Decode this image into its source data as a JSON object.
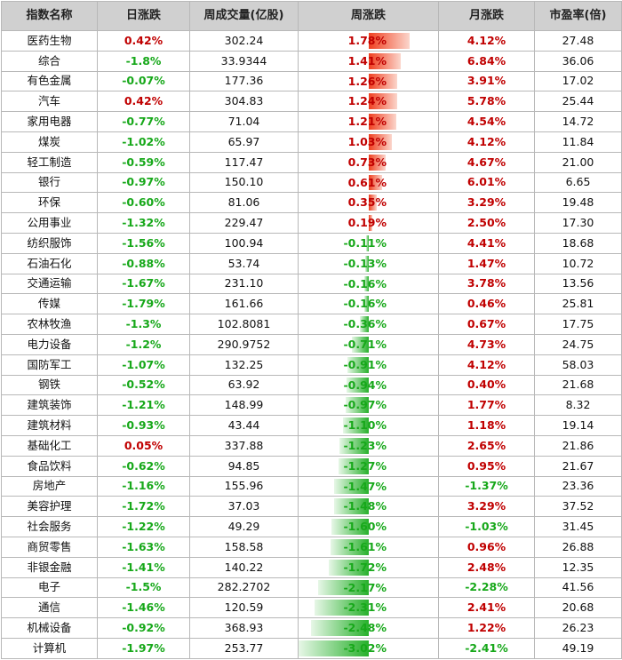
{
  "headers": [
    "指数名称",
    "日涨跌",
    "周成交量(亿股)",
    "周涨跌",
    "月涨跌",
    "市盈率(倍)"
  ],
  "rows": [
    {
      "name": "医药生物",
      "day": "0.42%",
      "vol": "302.24",
      "week": "1.78%",
      "week_value": 1.78,
      "month": "4.12%",
      "pe": "27.48"
    },
    {
      "name": "综合",
      "day": "-1.8%",
      "vol": "33.9344",
      "week": "1.41%",
      "week_value": 1.41,
      "month": "6.84%",
      "pe": "36.06"
    },
    {
      "name": "有色金属",
      "day": "-0.07%",
      "vol": "177.36",
      "week": "1.26%",
      "week_value": 1.26,
      "month": "3.91%",
      "pe": "17.02"
    },
    {
      "name": "汽车",
      "day": "0.42%",
      "vol": "304.83",
      "week": "1.24%",
      "week_value": 1.24,
      "month": "5.78%",
      "pe": "25.44"
    },
    {
      "name": "家用电器",
      "day": "-0.77%",
      "vol": "71.04",
      "week": "1.21%",
      "week_value": 1.21,
      "month": "4.54%",
      "pe": "14.72"
    },
    {
      "name": "煤炭",
      "day": "-1.02%",
      "vol": "65.97",
      "week": "1.03%",
      "week_value": 1.03,
      "month": "4.12%",
      "pe": "11.84"
    },
    {
      "name": "轻工制造",
      "day": "-0.59%",
      "vol": "117.47",
      "week": "0.73%",
      "week_value": 0.73,
      "month": "4.67%",
      "pe": "21.00"
    },
    {
      "name": "银行",
      "day": "-0.97%",
      "vol": "150.10",
      "week": "0.61%",
      "week_value": 0.61,
      "month": "6.01%",
      "pe": "6.65"
    },
    {
      "name": "环保",
      "day": "-0.60%",
      "vol": "81.06",
      "week": "0.35%",
      "week_value": 0.35,
      "month": "3.29%",
      "pe": "19.48"
    },
    {
      "name": "公用事业",
      "day": "-1.32%",
      "vol": "229.47",
      "week": "0.19%",
      "week_value": 0.19,
      "month": "2.50%",
      "pe": "17.30"
    },
    {
      "name": "纺织服饰",
      "day": "-1.56%",
      "vol": "100.94",
      "week": "-0.11%",
      "week_value": -0.11,
      "month": "4.41%",
      "pe": "18.68"
    },
    {
      "name": "石油石化",
      "day": "-0.88%",
      "vol": "53.74",
      "week": "-0.13%",
      "week_value": -0.13,
      "month": "1.47%",
      "pe": "10.72"
    },
    {
      "name": "交通运输",
      "day": "-1.67%",
      "vol": "231.10",
      "week": "-0.16%",
      "week_value": -0.16,
      "month": "3.78%",
      "pe": "13.56"
    },
    {
      "name": "传媒",
      "day": "-1.79%",
      "vol": "161.66",
      "week": "-0.16%",
      "week_value": -0.16,
      "month": "0.46%",
      "pe": "25.81"
    },
    {
      "name": "农林牧渔",
      "day": "-1.3%",
      "vol": "102.8081",
      "week": "-0.36%",
      "week_value": -0.36,
      "month": "0.67%",
      "pe": "17.75"
    },
    {
      "name": "电力设备",
      "day": "-1.2%",
      "vol": "290.9752",
      "week": "-0.71%",
      "week_value": -0.71,
      "month": "4.73%",
      "pe": "24.75"
    },
    {
      "name": "国防军工",
      "day": "-1.07%",
      "vol": "132.25",
      "week": "-0.91%",
      "week_value": -0.91,
      "month": "4.12%",
      "pe": "58.03"
    },
    {
      "name": "钢铁",
      "day": "-0.52%",
      "vol": "63.92",
      "week": "-0.94%",
      "week_value": -0.94,
      "month": "0.40%",
      "pe": "21.68"
    },
    {
      "name": "建筑装饰",
      "day": "-1.21%",
      "vol": "148.99",
      "week": "-0.97%",
      "week_value": -0.97,
      "month": "1.77%",
      "pe": "8.32"
    },
    {
      "name": "建筑材料",
      "day": "-0.93%",
      "vol": "43.44",
      "week": "-1.10%",
      "week_value": -1.1,
      "month": "1.18%",
      "pe": "19.14"
    },
    {
      "name": "基础化工",
      "day": "0.05%",
      "vol": "337.88",
      "week": "-1.23%",
      "week_value": -1.23,
      "month": "2.65%",
      "pe": "21.86"
    },
    {
      "name": "食品饮料",
      "day": "-0.62%",
      "vol": "94.85",
      "week": "-1.27%",
      "week_value": -1.27,
      "month": "0.95%",
      "pe": "21.67"
    },
    {
      "name": "房地产",
      "day": "-1.16%",
      "vol": "155.96",
      "week": "-1.47%",
      "week_value": -1.47,
      "month": "-1.37%",
      "pe": "23.36"
    },
    {
      "name": "美容护理",
      "day": "-1.72%",
      "vol": "37.03",
      "week": "-1.48%",
      "week_value": -1.48,
      "month": "3.29%",
      "pe": "37.52"
    },
    {
      "name": "社会服务",
      "day": "-1.22%",
      "vol": "49.29",
      "week": "-1.60%",
      "week_value": -1.6,
      "month": "-1.03%",
      "pe": "31.45"
    },
    {
      "name": "商贸零售",
      "day": "-1.63%",
      "vol": "158.58",
      "week": "-1.61%",
      "week_value": -1.61,
      "month": "0.96%",
      "pe": "26.88"
    },
    {
      "name": "非银金融",
      "day": "-1.41%",
      "vol": "140.22",
      "week": "-1.72%",
      "week_value": -1.72,
      "month": "2.48%",
      "pe": "12.35"
    },
    {
      "name": "电子",
      "day": "-1.5%",
      "vol": "282.2702",
      "week": "-2.17%",
      "week_value": -2.17,
      "month": "-2.28%",
      "pe": "41.56"
    },
    {
      "name": "通信",
      "day": "-1.46%",
      "vol": "120.59",
      "week": "-2.31%",
      "week_value": -2.31,
      "month": "2.41%",
      "pe": "20.68"
    },
    {
      "name": "机械设备",
      "day": "-0.92%",
      "vol": "368.93",
      "week": "-2.48%",
      "week_value": -2.48,
      "month": "1.22%",
      "pe": "26.23"
    },
    {
      "name": "计算机",
      "day": "-1.97%",
      "vol": "253.77",
      "week": "-3.02%",
      "week_value": -3.02,
      "month": "-2.41%",
      "pe": "49.19"
    }
  ],
  "colors": {
    "up": "#c00000",
    "down": "#17a81a",
    "bar_up": "#f04020",
    "bar_down": "#27b02b",
    "header_bg": "#d0d0d0"
  },
  "week_bar_max": 3.02
}
